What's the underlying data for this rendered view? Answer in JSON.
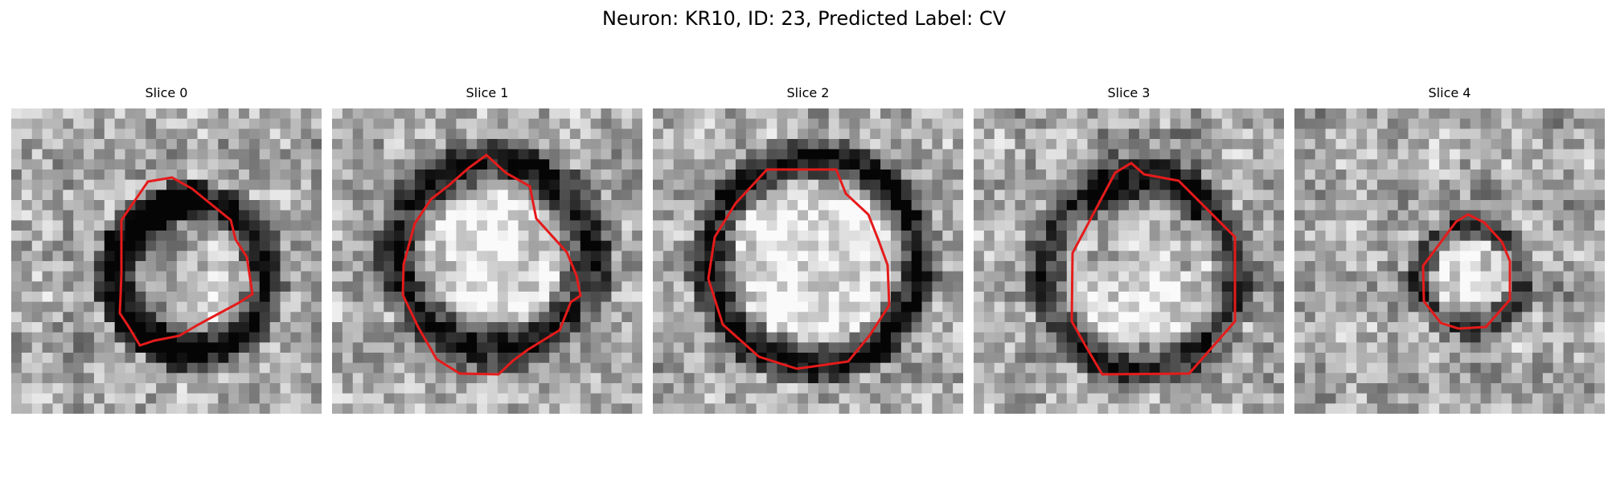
{
  "figure": {
    "title": "Neuron: KR10, ID: 23, Predicted Label: CV"
  },
  "panels": [
    {
      "title": "Slice 0",
      "contour_color": "#e51b1b"
    },
    {
      "title": "Slice 1",
      "contour_color": "#e51b1b"
    },
    {
      "title": "Slice 2",
      "contour_color": "#e51b1b"
    },
    {
      "title": "Slice 3",
      "contour_color": "#e51b1b"
    },
    {
      "title": "Slice 4",
      "contour_color": "#e51b1b"
    }
  ]
}
